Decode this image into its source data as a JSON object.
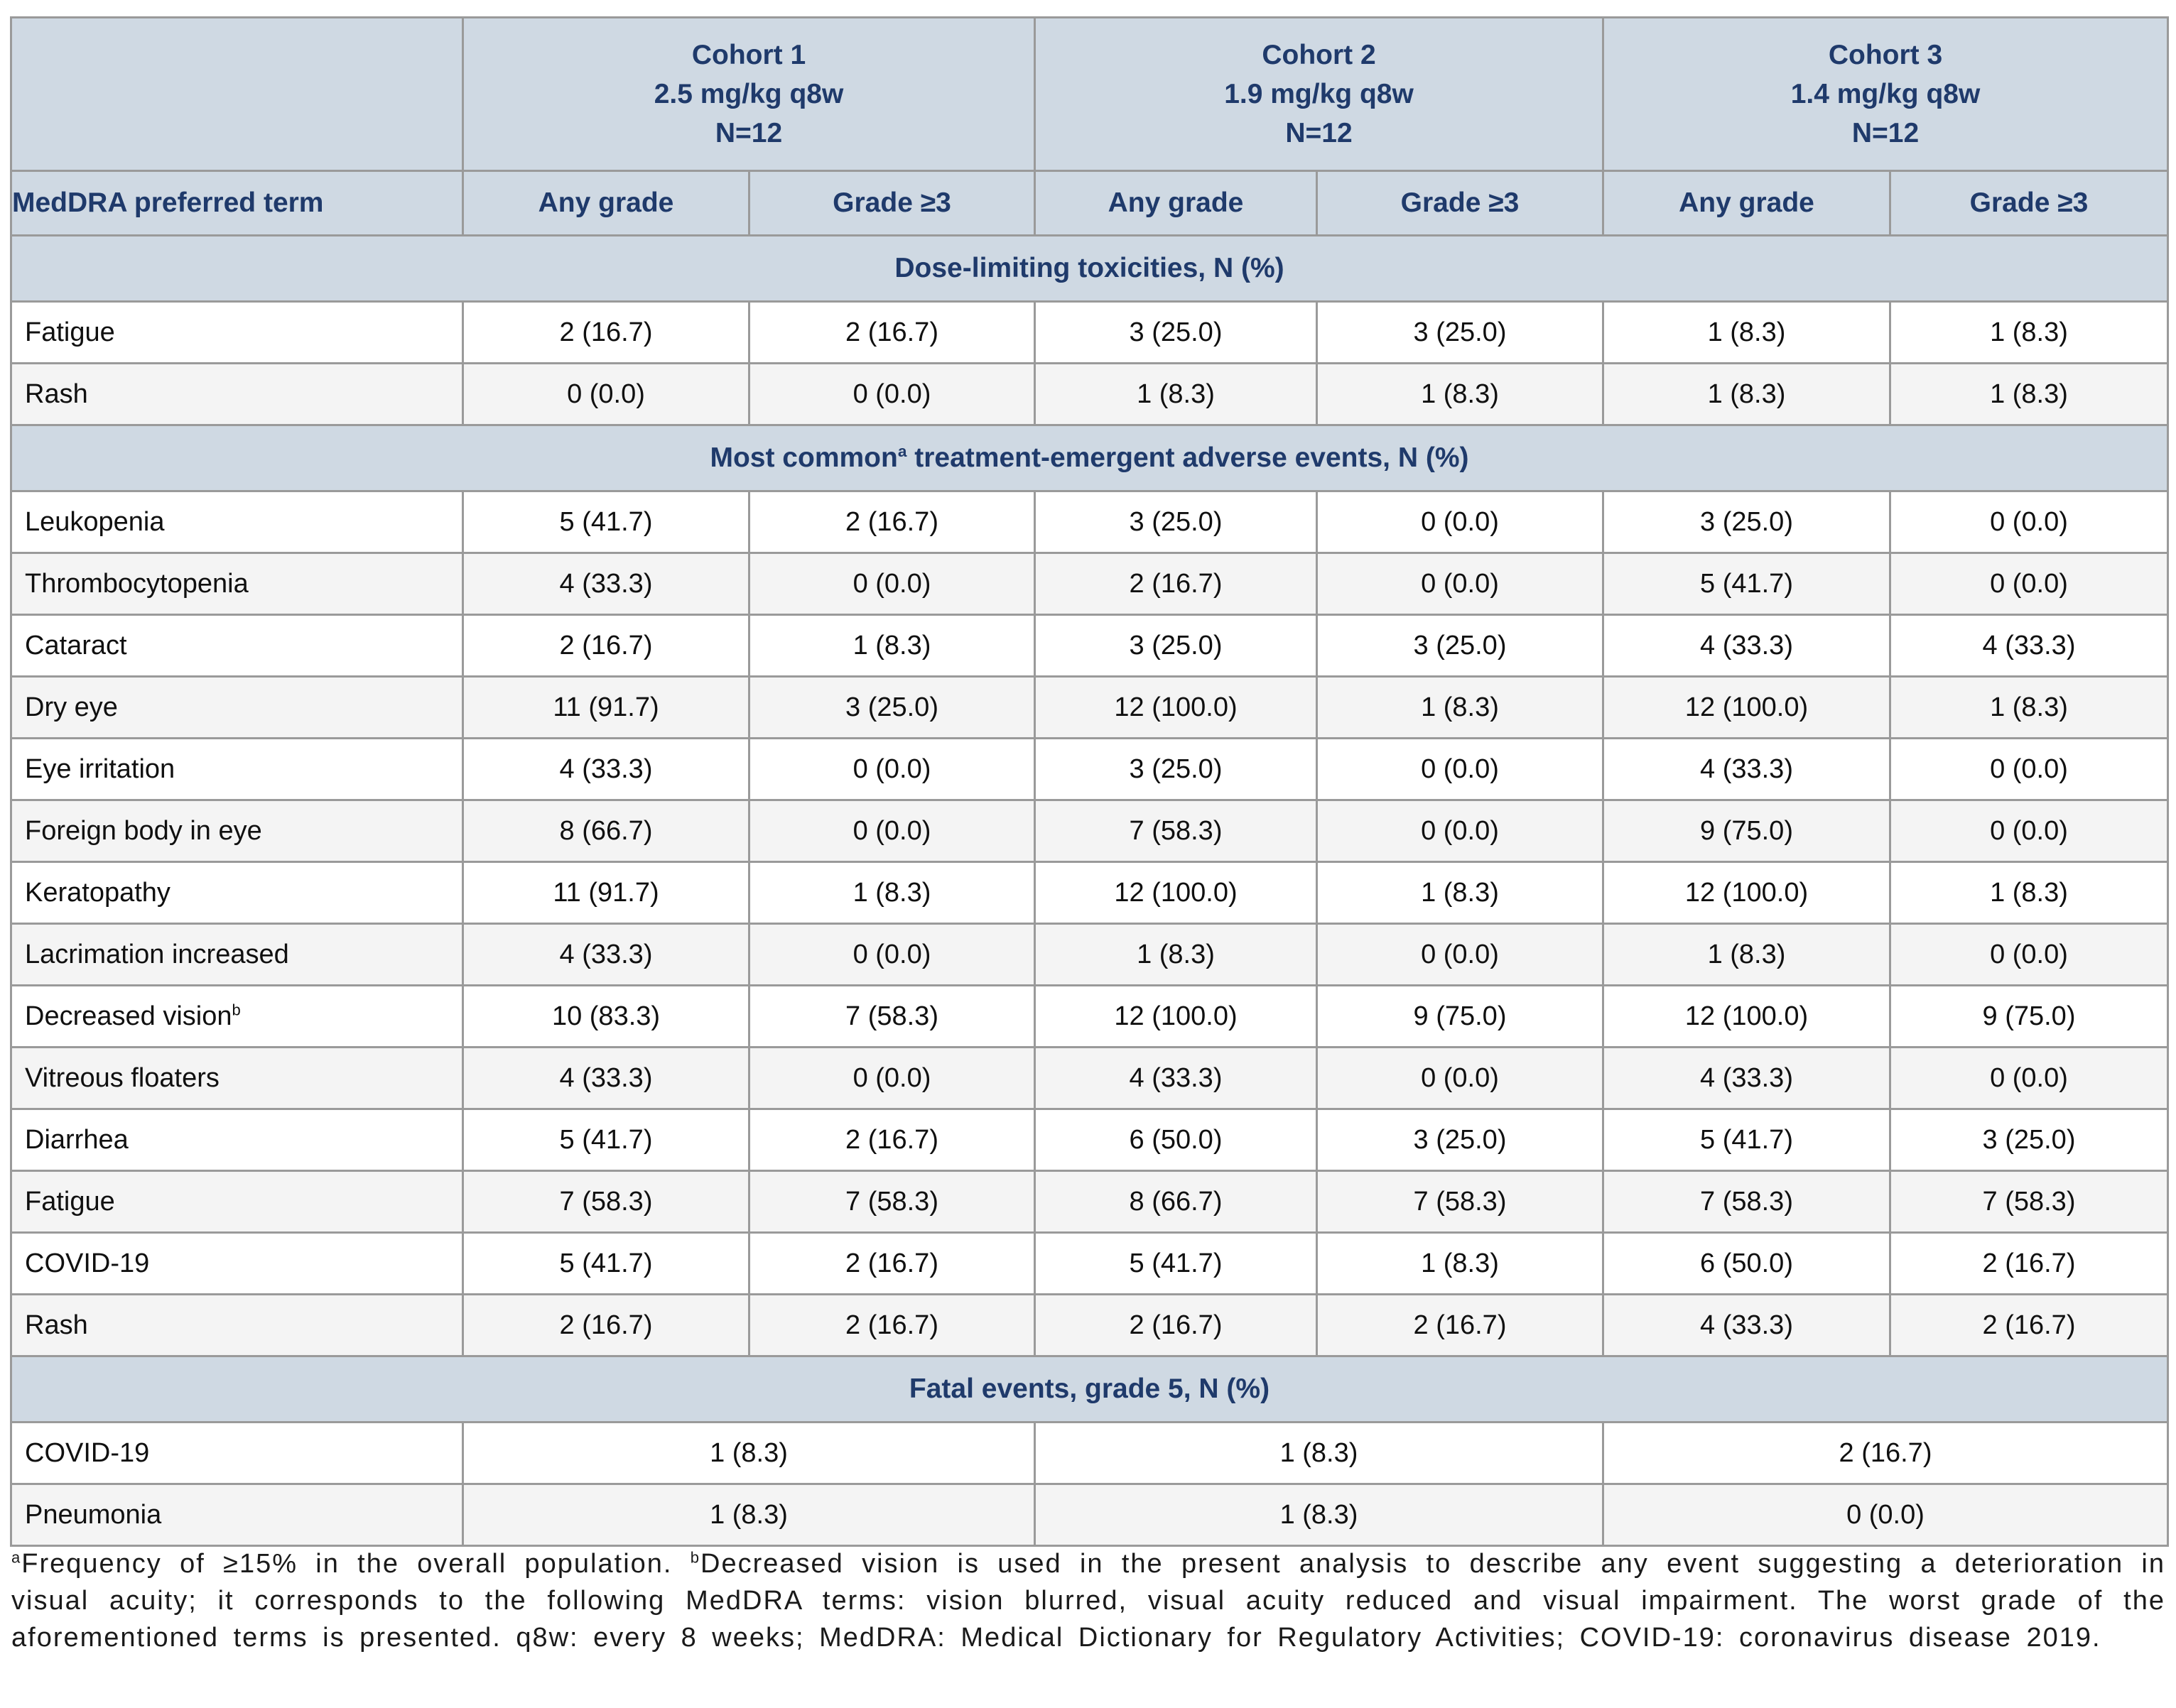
{
  "colors": {
    "header_bg": "#CFD9E3",
    "header_text": "#1F3A6B",
    "alt_row_bg": "#F4F4F4",
    "grid_border": "#9A9A9A",
    "outer_border": "#8A8A8A",
    "data_text": "#101010",
    "footnote_text": "#1A1A1A"
  },
  "table": {
    "corner_label": "",
    "col_header": "MedDRA preferred term",
    "grade_headers": [
      "Any grade",
      "Grade ≥3"
    ],
    "cohorts": [
      {
        "title": "Cohort 1",
        "dose": "2.5 mg/kg q8w",
        "n": "N=12"
      },
      {
        "title": "Cohort 2",
        "dose": "1.9 mg/kg q8w",
        "n": "N=12"
      },
      {
        "title": "Cohort 3",
        "dose": "1.4 mg/kg q8w",
        "n": "N=12"
      }
    ],
    "sections": [
      {
        "title_pre": "Dose-limiting toxicities, N (%)",
        "title_sup": "",
        "title_post": "",
        "merged": false,
        "rows": [
          {
            "term": "Fatigue",
            "sup": "",
            "values": [
              "2 (16.7)",
              "2 (16.7)",
              "3 (25.0)",
              "3 (25.0)",
              "1 (8.3)",
              "1 (8.3)"
            ]
          },
          {
            "term": "Rash",
            "sup": "",
            "values": [
              "0 (0.0)",
              "0 (0.0)",
              "1 (8.3)",
              "1 (8.3)",
              "1 (8.3)",
              "1 (8.3)"
            ]
          }
        ]
      },
      {
        "title_pre": "Most common",
        "title_sup": "a",
        "title_post": " treatment-emergent adverse events, N (%)",
        "merged": false,
        "rows": [
          {
            "term": "Leukopenia",
            "sup": "",
            "values": [
              "5 (41.7)",
              "2 (16.7)",
              "3 (25.0)",
              "0 (0.0)",
              "3 (25.0)",
              "0 (0.0)"
            ]
          },
          {
            "term": "Thrombocytopenia",
            "sup": "",
            "values": [
              "4 (33.3)",
              "0 (0.0)",
              "2 (16.7)",
              "0 (0.0)",
              "5 (41.7)",
              "0 (0.0)"
            ]
          },
          {
            "term": "Cataract",
            "sup": "",
            "values": [
              "2 (16.7)",
              "1 (8.3)",
              "3 (25.0)",
              "3 (25.0)",
              "4 (33.3)",
              "4 (33.3)"
            ]
          },
          {
            "term": "Dry eye",
            "sup": "",
            "values": [
              "11 (91.7)",
              "3 (25.0)",
              "12 (100.0)",
              "1 (8.3)",
              "12 (100.0)",
              "1 (8.3)"
            ]
          },
          {
            "term": "Eye irritation",
            "sup": "",
            "values": [
              "4 (33.3)",
              "0 (0.0)",
              "3 (25.0)",
              "0 (0.0)",
              "4 (33.3)",
              "0 (0.0)"
            ]
          },
          {
            "term": "Foreign body in eye",
            "sup": "",
            "values": [
              "8 (66.7)",
              "0 (0.0)",
              "7 (58.3)",
              "0 (0.0)",
              "9 (75.0)",
              "0 (0.0)"
            ]
          },
          {
            "term": "Keratopathy",
            "sup": "",
            "values": [
              "11 (91.7)",
              "1 (8.3)",
              "12 (100.0)",
              "1 (8.3)",
              "12 (100.0)",
              "1 (8.3)"
            ]
          },
          {
            "term": "Lacrimation increased",
            "sup": "",
            "values": [
              "4 (33.3)",
              "0 (0.0)",
              "1 (8.3)",
              "0 (0.0)",
              "1 (8.3)",
              "0 (0.0)"
            ]
          },
          {
            "term": "Decreased vision",
            "sup": "b",
            "values": [
              "10 (83.3)",
              "7 (58.3)",
              "12 (100.0)",
              "9 (75.0)",
              "12 (100.0)",
              "9 (75.0)"
            ]
          },
          {
            "term": "Vitreous floaters",
            "sup": "",
            "values": [
              "4 (33.3)",
              "0 (0.0)",
              "4 (33.3)",
              "0 (0.0)",
              "4 (33.3)",
              "0 (0.0)"
            ]
          },
          {
            "term": "Diarrhea",
            "sup": "",
            "values": [
              "5 (41.7)",
              "2 (16.7)",
              "6 (50.0)",
              "3 (25.0)",
              "5 (41.7)",
              "3 (25.0)"
            ]
          },
          {
            "term": "Fatigue",
            "sup": "",
            "values": [
              "7 (58.3)",
              "7 (58.3)",
              "8 (66.7)",
              "7 (58.3)",
              "7 (58.3)",
              "7 (58.3)"
            ]
          },
          {
            "term": "COVID-19",
            "sup": "",
            "values": [
              "5 (41.7)",
              "2 (16.7)",
              "5 (41.7)",
              "1 (8.3)",
              "6 (50.0)",
              "2 (16.7)"
            ]
          },
          {
            "term": "Rash",
            "sup": "",
            "values": [
              "2 (16.7)",
              "2 (16.7)",
              "2 (16.7)",
              "2 (16.7)",
              "4 (33.3)",
              "2 (16.7)"
            ]
          }
        ]
      },
      {
        "title_pre": "Fatal events, grade 5, N (%)",
        "title_sup": "",
        "title_post": "",
        "merged": true,
        "rows": [
          {
            "term": "COVID-19",
            "sup": "",
            "values": [
              "1 (8.3)",
              "1 (8.3)",
              "2 (16.7)"
            ]
          },
          {
            "term": "Pneumonia",
            "sup": "",
            "values": [
              "1 (8.3)",
              "1 (8.3)",
              "0 (0.0)"
            ]
          }
        ]
      }
    ]
  },
  "footnote": {
    "sup_a": "a",
    "text_a": "Frequency of ≥15% in the overall population. ",
    "sup_b": "b",
    "text_b": "Decreased vision is used in the present analysis to describe any event suggesting a deterioration in visual acuity; it corresponds to the following MedDRA terms: vision blurred, visual acuity reduced and visual impairment. The worst grade of the aforementioned terms is presented. q8w: every 8 weeks; MedDRA:  Medical Dictionary for Regulatory Activities;  COVID-19: coronavirus disease 2019."
  }
}
